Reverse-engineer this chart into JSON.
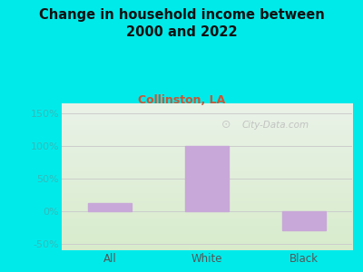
{
  "title": "Change in household income between\n2000 and 2022",
  "subtitle": "Collinston, LA",
  "categories": [
    "All",
    "White",
    "Black"
  ],
  "values": [
    12,
    100,
    -30
  ],
  "bar_color": "#c8a8d8",
  "bg_color": "#00eaea",
  "plot_bg_top": "#eaf2e8",
  "plot_bg_bottom": "#d8eccc",
  "title_color": "#111111",
  "subtitle_color": "#cc5533",
  "tick_color": "#33bbbb",
  "xtick_color": "#555555",
  "ylim": [
    -60,
    165
  ],
  "yticks": [
    -50,
    0,
    50,
    100,
    150
  ],
  "ytick_labels": [
    "-50%",
    "0%",
    "50%",
    "100%",
    "150%"
  ],
  "watermark": "City-Data.com",
  "grid_color": "#cccccc",
  "title_fontsize": 10.5,
  "subtitle_fontsize": 9
}
